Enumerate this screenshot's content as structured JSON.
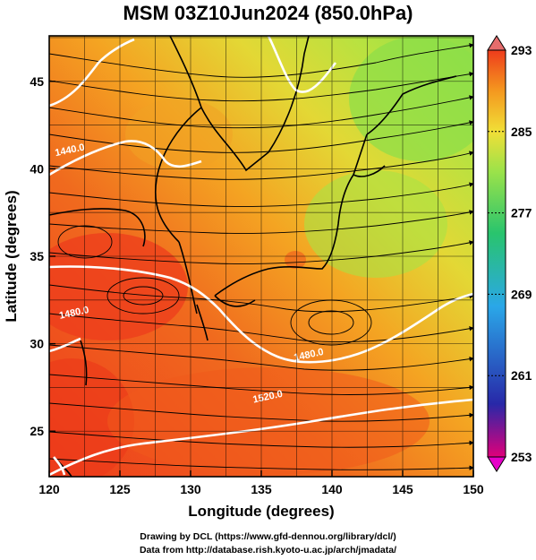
{
  "title": "MSM 03Z10Jun2024 (850.0hPa)",
  "x_axis": {
    "label": "Longitude (degrees)",
    "ticks": [
      "120",
      "125",
      "130",
      "135",
      "140",
      "145",
      "150"
    ],
    "range": [
      120,
      150
    ]
  },
  "y_axis": {
    "label": "Latitude  (degrees)",
    "ticks": [
      "25",
      "30",
      "35",
      "40",
      "45"
    ],
    "range": [
      22.4,
      47.6
    ]
  },
  "colorbar": {
    "ticks": [
      "293",
      "285",
      "277",
      "269",
      "261",
      "253"
    ],
    "range": [
      253,
      293
    ],
    "colors": [
      "#e0007a",
      "#2828a8",
      "#2aa7e8",
      "#29c46d",
      "#9ae24a",
      "#f1df37",
      "#f4981f",
      "#ee3c1c",
      "#e66c6c"
    ]
  },
  "contours": [
    {
      "label": "1440.0",
      "lon": 121.5,
      "lat": 40.9
    },
    {
      "label": "1480.0",
      "lon": 138.4,
      "lat": 29.2
    },
    {
      "label": "1480.0",
      "lon": 121.8,
      "lat": 31.6
    },
    {
      "label": "1520.0",
      "lon": 135.5,
      "lat": 26.8
    }
  ],
  "credits": {
    "line1": "Drawing by DCL (https://www.gfd-dennou.org/library/dcl/)",
    "line2": "Data from http://database.rish.kyoto-u.ac.jp/arch/jmadata/"
  }
}
